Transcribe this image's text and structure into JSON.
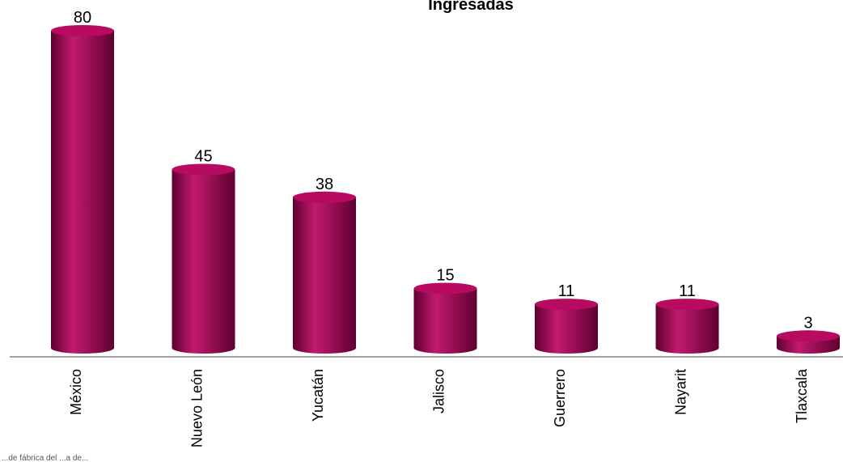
{
  "chart_data": {
    "type": "bar",
    "style": "3d-cylinder",
    "title": "Ingresadas",
    "categories": [
      "México",
      "Nuevo León",
      "Yucatán",
      "Jalisco",
      "Guerrero",
      "Nayarit",
      "Tlaxcala"
    ],
    "values": [
      80,
      45,
      38,
      15,
      11,
      11,
      3
    ],
    "data_labels": true,
    "xlabel": "",
    "ylabel": "",
    "ylim": [
      0,
      80
    ],
    "grid": false,
    "legend": "none",
    "colors": {
      "bar": "#9e0050",
      "bar_light": "#c21a6e",
      "bar_dark": "#5e0030",
      "top": "#b80a60",
      "axis": "#a0a0a0"
    }
  },
  "footnote": "...de fábrica del ...a de..."
}
